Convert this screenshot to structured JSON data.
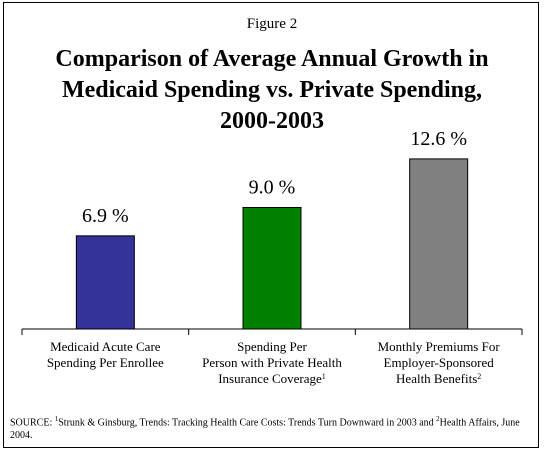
{
  "figure_label": "Figure 2",
  "chart_data": {
    "type": "bar",
    "title_lines": [
      "Comparison of Average Annual Growth in",
      "Medicaid Spending vs. Private Spending,",
      "2000-2003"
    ],
    "categories": [
      {
        "lines": [
          "Medicaid Acute Care",
          "Spending Per Enrollee"
        ],
        "sup": ""
      },
      {
        "lines": [
          "Spending Per",
          "Person with Private Health",
          "Insurance Coverage"
        ],
        "sup": "1"
      },
      {
        "lines": [
          "Monthly Premiums For",
          "Employer-Sponsored",
          "Health Benefits"
        ],
        "sup": "2"
      }
    ],
    "values": [
      6.9,
      9.0,
      12.6
    ],
    "data_labels": [
      "6.9 %",
      "9.0 %",
      "12.6 %"
    ],
    "colors": [
      "#333399",
      "#008000",
      "#808080"
    ],
    "ylim": [
      0,
      14
    ],
    "grid": false,
    "legend": "none"
  },
  "source": {
    "prefix": "SOURCE: ",
    "sup1": "1",
    "text1": "Strunk & Ginsburg, Trends: Tracking Health Care Costs: Trends Turn Downward in 2003 and ",
    "sup2": "2",
    "text2": "Health Affairs, June 2004."
  }
}
